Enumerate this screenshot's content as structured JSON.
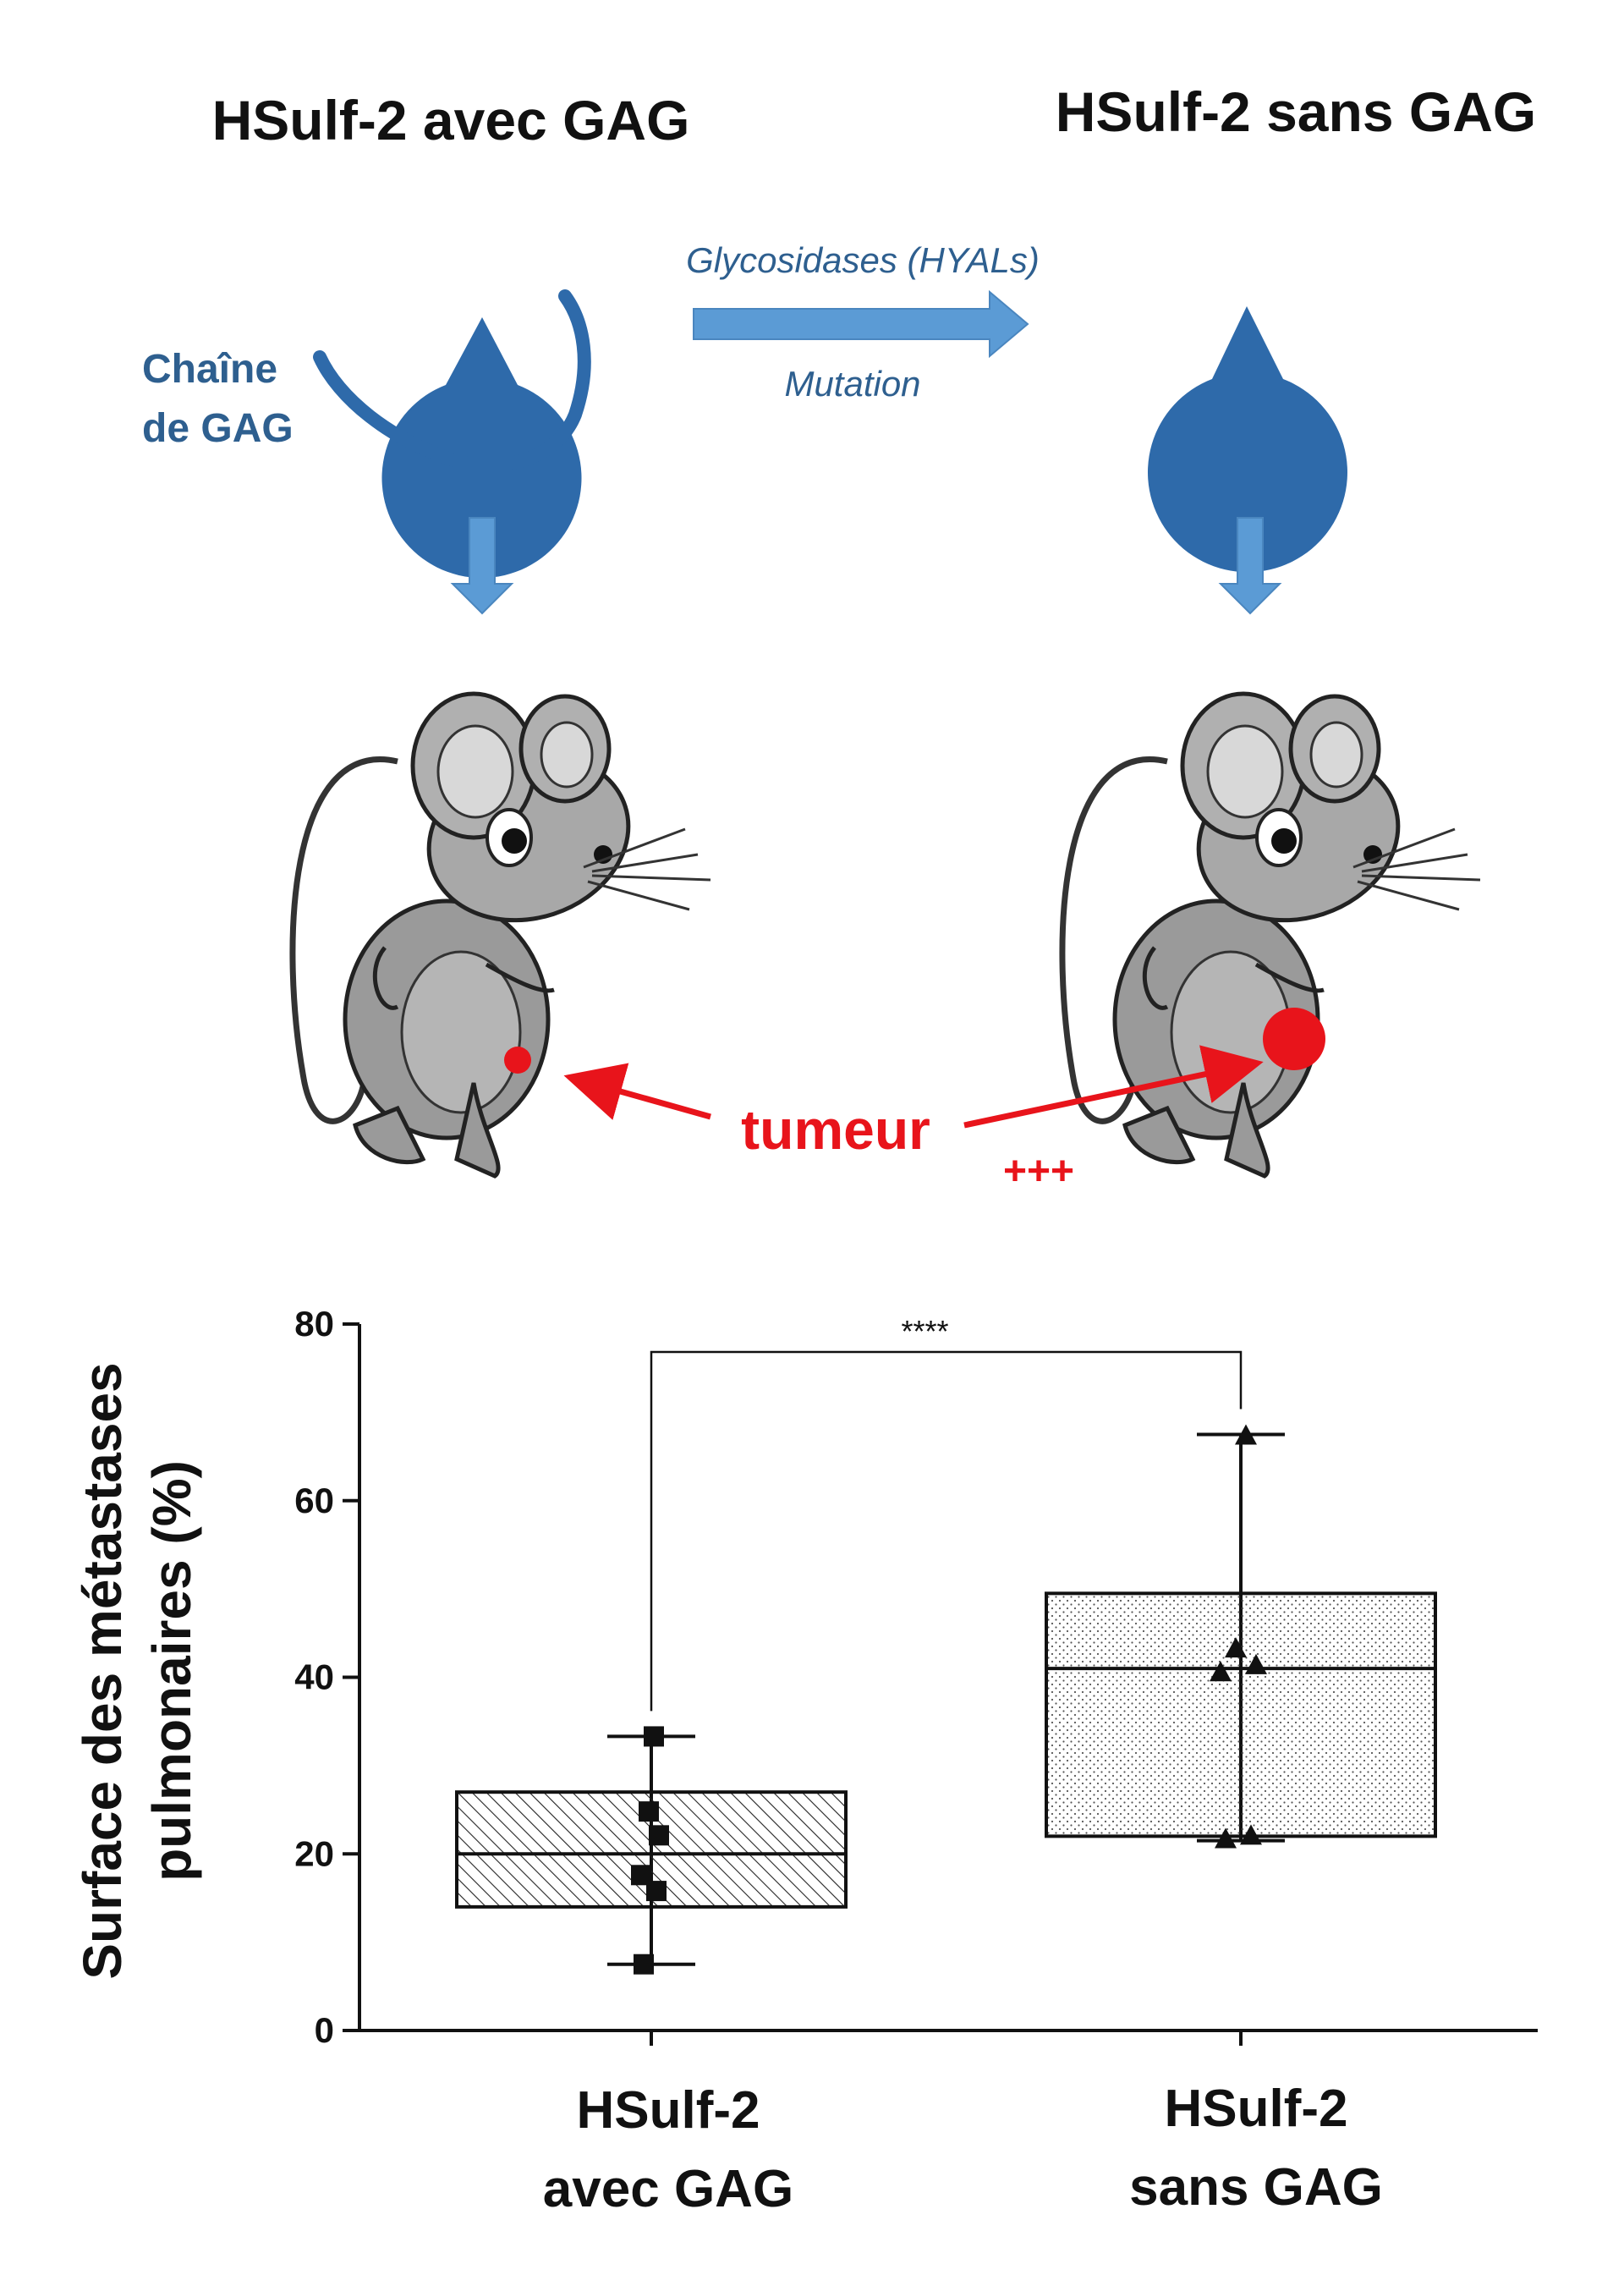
{
  "diagram": {
    "title_left": "HSulf-2 avec GAG",
    "title_right": "HSulf-2 sans GAG",
    "gag_label_line1": "Chaîne",
    "gag_label_line2": "de GAG",
    "arrow_label_top": "Glycosidases (HYALs)",
    "arrow_label_bottom": "Mutation",
    "tumor_label": "tumeur",
    "tumor_plus": "+++",
    "colors": {
      "enzyme_blue": "#2e6aaa",
      "arrow_blue": "#5b9bd5",
      "tumor_red": "#e8141b"
    }
  },
  "chart_data": {
    "type": "box",
    "ylabel_line1": "Surface des métastases",
    "ylabel_line2": "pulmonaires (%)",
    "ylim": [
      0,
      80
    ],
    "yticks": [
      "0",
      "20",
      "40",
      "60",
      "80"
    ],
    "significance": "****",
    "categories": [
      {
        "line1": "HSulf-2",
        "line2": "avec GAG"
      },
      {
        "line1": "HSulf-2",
        "line2": "sans GAG"
      }
    ],
    "series": [
      {
        "min": 7.5,
        "q1": 14,
        "median": 20,
        "q3": 27,
        "max": 33.3,
        "points": [
          7.5,
          15.8,
          17.6,
          22.1,
          24.8,
          33.3
        ],
        "marker": "square",
        "pattern": "hatch"
      },
      {
        "min": 21.5,
        "q1": 22,
        "median": 41,
        "q3": 49.5,
        "max": 67.5,
        "points": [
          21.6,
          22.0,
          40.5,
          41.3,
          43.2,
          67.3
        ],
        "marker": "triangle",
        "pattern": "dots"
      }
    ]
  }
}
